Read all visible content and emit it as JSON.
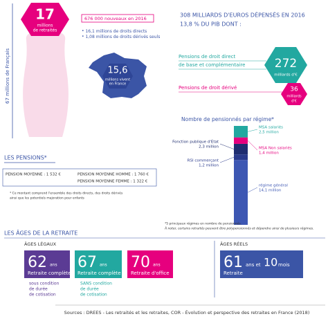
{
  "population": {
    "label": "67 millions de Français"
  },
  "retirees": {
    "number": "17",
    "unit_lines": [
      "millions",
      "de retraités"
    ],
    "new": "676 000 nouveaux en 2016",
    "bullets": [
      "16,1 millions de droits directs",
      "1,08 millions de droits dérivés seuls"
    ]
  },
  "france": {
    "number": "15,6",
    "text_lines": [
      "millions vivent",
      "en France"
    ]
  },
  "spending": {
    "title_lines": [
      "308 MILLIARDS D'EUROS DÉPENSÉS EN 2016",
      "13,8 % DU PIB DONT :"
    ],
    "direct": {
      "label_lines": [
        "Pensions de droit direct",
        "de base et complémentaire"
      ],
      "number": "272",
      "unit": "milliards d'€"
    },
    "derived": {
      "label": "Pensions de droit dérivé",
      "number": "36",
      "unit_lines": [
        "milliards",
        "d'€"
      ]
    }
  },
  "regimes": {
    "title": "Nombre de pensionnés par régime*",
    "items": [
      {
        "name": "régime général",
        "value": 14.1,
        "value_label": "14,1 million",
        "color": "#3d57b3"
      },
      {
        "name": "RSI commerçant",
        "value": 1.2,
        "value_label": "1,2 million",
        "color": "#2a3a8c"
      },
      {
        "name": "Fonction publique d'Etat",
        "value": 2.3,
        "value_label": "2,3 million",
        "color": "#1f2d70"
      },
      {
        "name": "MSA Non salariés",
        "value": 1.4,
        "value_label": "1,4 million",
        "color": "#e6007e"
      },
      {
        "name": "MSA salariés",
        "value": 2.5,
        "value_label": "2,5 million",
        "color": "#22a8a0"
      }
    ],
    "footnotes": [
      "*5 principaux régimes en nombre de pensionnés.",
      "À noter, certains retraités peuvent être polypensionnés et dépendre ainsi de plusieurs régimes."
    ]
  },
  "pensions": {
    "heading": "LES PENSIONS*",
    "rows": [
      "PENSION MOYENNE : 1 532 €",
      "PENSION MOYENNE HOMME : 1 760 €",
      "PENSION MOYENNE FEMME : 1 322 €"
    ],
    "note_lines": [
      "* Ce montant comprend l'ensemble des droits directs, des droits dérivés",
      "ainsi que les potentiels majoration pour enfants"
    ]
  },
  "ages": {
    "heading": "LES ÂGES DE LA RETRAITE",
    "legal_heading": "ÂGES LÉGAUX",
    "real_heading": "ÂGES RÉELS",
    "cards": [
      {
        "age": "62",
        "unit": "ans",
        "label": "Retraite complète",
        "condition_lines": [
          "sous condition",
          "de durée",
          "de cotisation"
        ]
      },
      {
        "age": "67",
        "unit": "ans",
        "label": "Retraite complète",
        "condition_lines": [
          "SANS condition",
          "de durée",
          "de cotisation"
        ]
      },
      {
        "age": "70",
        "unit": "ans",
        "label": "Retraite d'office"
      },
      {
        "age": "61",
        "unit": "ans et",
        "extra_number": "10",
        "extra_unit": "mois",
        "label": "Retraite"
      }
    ]
  },
  "source": "Sources : DREES - Les retraités et les retraites, COR - Évolution et perspective des retraites en France (2018)"
}
